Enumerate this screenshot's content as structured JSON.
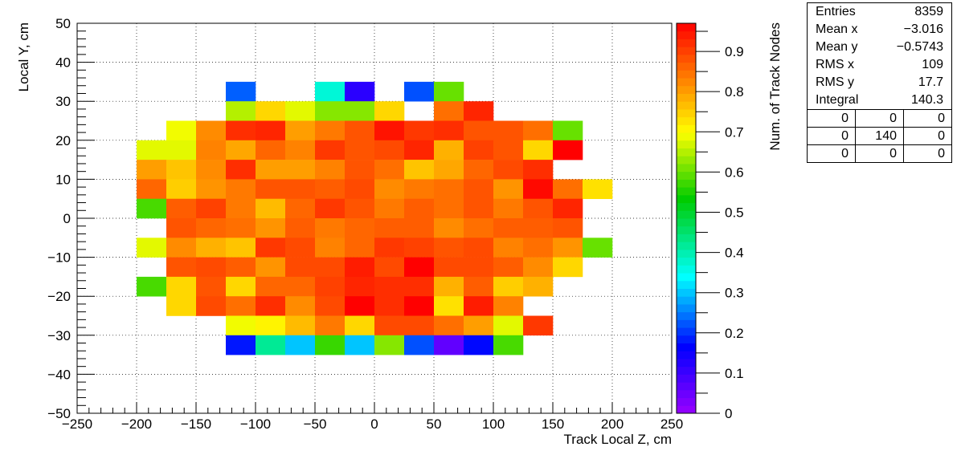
{
  "chart_data": {
    "type": "heatmap",
    "title": "",
    "xlabel": "Track Local Z, cm",
    "ylabel": "Local Y, cm",
    "zlabel": "Num. of Track Nodes",
    "xlim": [
      -250,
      250
    ],
    "ylim": [
      -50,
      50
    ],
    "zlim": [
      0,
      0.97
    ],
    "xticks": [
      -250,
      -200,
      -150,
      -100,
      -50,
      0,
      50,
      100,
      150,
      200,
      250
    ],
    "yticks": [
      -50,
      -40,
      -30,
      -20,
      -10,
      0,
      10,
      20,
      30,
      40,
      50
    ],
    "zticks": [
      0,
      0.1,
      0.2,
      0.3,
      0.4,
      0.5,
      0.6,
      0.7,
      0.8,
      0.9
    ],
    "grid": true,
    "bin_width_x": 25,
    "bin_width_y": 5,
    "x_bin_starts": [
      -200,
      -175,
      -150,
      -125,
      -100,
      -75,
      -50,
      -25,
      0,
      25,
      50,
      75,
      100,
      125,
      150,
      175
    ],
    "y_bin_starts": [
      30,
      25,
      20,
      15,
      10,
      5,
      0,
      -5,
      -10,
      -15,
      -20,
      -25,
      -30,
      -35
    ],
    "z": [
      [
        null,
        null,
        null,
        0.23,
        null,
        null,
        0.37,
        0.12,
        null,
        0.22,
        0.6,
        null,
        null,
        null,
        null,
        null
      ],
      [
        null,
        null,
        null,
        0.65,
        0.74,
        0.68,
        0.62,
        0.62,
        0.74,
        null,
        0.85,
        0.93,
        null,
        null,
        null,
        null
      ],
      [
        null,
        0.69,
        0.82,
        0.92,
        0.93,
        0.8,
        0.84,
        0.88,
        0.95,
        0.91,
        0.92,
        0.88,
        0.88,
        0.85,
        0.6,
        null
      ],
      [
        0.68,
        0.68,
        0.83,
        0.79,
        0.86,
        0.83,
        0.91,
        0.88,
        0.89,
        0.93,
        0.78,
        0.9,
        0.88,
        0.74,
        0.97,
        null
      ],
      [
        0.8,
        0.76,
        0.82,
        0.92,
        0.8,
        0.8,
        0.83,
        0.88,
        0.85,
        0.76,
        0.79,
        0.86,
        0.89,
        0.92,
        null,
        null
      ],
      [
        0.86,
        0.75,
        0.81,
        0.84,
        0.88,
        0.88,
        0.87,
        0.89,
        0.82,
        0.84,
        0.85,
        0.88,
        0.81,
        0.96,
        0.85,
        0.73
      ],
      [
        0.58,
        0.87,
        0.9,
        0.84,
        0.77,
        0.86,
        0.91,
        0.88,
        0.84,
        0.87,
        0.85,
        0.88,
        0.84,
        0.88,
        0.93,
        null
      ],
      [
        null,
        0.88,
        0.86,
        0.85,
        0.81,
        0.87,
        0.84,
        0.86,
        0.87,
        0.87,
        0.82,
        0.85,
        0.87,
        0.87,
        0.88,
        null
      ],
      [
        0.68,
        0.82,
        0.78,
        0.76,
        0.91,
        0.89,
        0.83,
        0.86,
        0.91,
        0.9,
        0.88,
        0.89,
        0.83,
        0.85,
        0.81,
        0.6
      ],
      [
        null,
        0.88,
        0.89,
        0.87,
        0.81,
        0.89,
        0.89,
        0.94,
        0.89,
        0.98,
        0.89,
        0.89,
        0.87,
        0.82,
        0.74,
        null
      ],
      [
        0.58,
        0.74,
        0.88,
        0.74,
        0.86,
        0.86,
        0.9,
        0.93,
        0.92,
        0.92,
        0.78,
        0.87,
        0.75,
        0.78,
        null,
        null
      ],
      [
        null,
        0.74,
        0.89,
        0.85,
        0.92,
        0.82,
        0.89,
        0.97,
        0.92,
        0.97,
        0.73,
        0.94,
        0.83,
        null,
        null,
        null
      ],
      [
        null,
        null,
        null,
        0.69,
        0.71,
        0.77,
        0.84,
        0.74,
        0.89,
        0.89,
        0.85,
        0.8,
        0.68,
        0.91,
        null,
        null
      ],
      [
        null,
        null,
        null,
        0.18,
        0.42,
        0.3,
        0.57,
        0.3,
        0.62,
        0.22,
        0.06,
        0.17,
        0.58,
        null,
        null,
        null
      ]
    ]
  },
  "stats": {
    "entries_label": "Entries",
    "entries_value": "8359",
    "mean_x_label": "Mean x",
    "mean_x_value": "−3.016",
    "mean_y_label": "Mean y",
    "mean_y_value": "−0.5743",
    "rms_x_label": "RMS x",
    "rms_x_value": "109",
    "rms_y_label": "RMS y",
    "rms_y_value": "17.7",
    "integral_label": "Integral",
    "integral_value": "140.3",
    "grid": [
      [
        "0",
        "0",
        "0"
      ],
      [
        "0",
        "140",
        "0"
      ],
      [
        "0",
        "0",
        "0"
      ]
    ]
  }
}
